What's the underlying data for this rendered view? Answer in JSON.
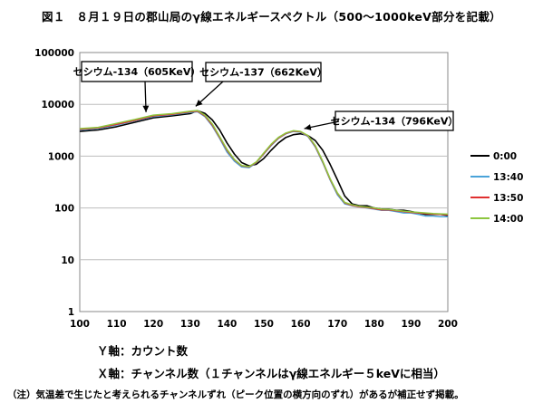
{
  "title": "図１　８月１９日の郡山局のγ線エネルギースペクトル（500～1000keV部分を記載）",
  "captions": {
    "y_axis": "Ｙ軸：カウント数",
    "x_axis": "Ｘ軸：チャンネル数（１チャンネルはγ線エネルギー５keVに相当）"
  },
  "note": "（注）気温差で生じたと考えられるチャンネルずれ（ピーク位置の横方向のずれ）があるが補正せず掲載。",
  "chart_data": {
    "type": "line",
    "title": "",
    "xlabel": "",
    "ylabel": "",
    "yscale": "log",
    "xlim": [
      100,
      200
    ],
    "ylim": [
      1,
      100000
    ],
    "x_ticks": [
      "100",
      "110",
      "120",
      "130",
      "140",
      "150",
      "160",
      "170",
      "180",
      "190",
      "200"
    ],
    "y_ticks": [
      "1",
      "10",
      "100",
      "1000",
      "10000",
      "100000"
    ],
    "grid": "horizontal",
    "legend_position": "right",
    "annotations": [
      {
        "text": "セシウム-134（605KeV）",
        "x": 118,
        "y": 6000
      },
      {
        "text": "セシウム-137（662KeV）",
        "x": 131.5,
        "y": 7800
      },
      {
        "text": "セシウム-134（796KeV）",
        "x": 161,
        "y": 2900
      }
    ],
    "series": [
      {
        "name": "0:00",
        "color": "#000000",
        "x": [
          100,
          105,
          110,
          115,
          120,
          125,
          130,
          132,
          134,
          136,
          138,
          140,
          142,
          144,
          146,
          148,
          150,
          152,
          154,
          156,
          158,
          160,
          162,
          164,
          166,
          168,
          170,
          172,
          174,
          176,
          178,
          180,
          182,
          184,
          186,
          188,
          190,
          192,
          194,
          196,
          198,
          200
        ],
        "y": [
          3000,
          3200,
          3700,
          4500,
          5500,
          6000,
          6600,
          7500,
          6700,
          5000,
          3200,
          1800,
          1100,
          750,
          650,
          700,
          900,
          1300,
          1800,
          2300,
          2600,
          2700,
          2500,
          2000,
          1300,
          700,
          350,
          170,
          120,
          110,
          110,
          100,
          95,
          95,
          90,
          90,
          85,
          80,
          75,
          75,
          75,
          72
        ]
      },
      {
        "name": "13:40",
        "color": "#4aa3d9",
        "x": [
          100,
          105,
          110,
          115,
          120,
          125,
          130,
          132,
          134,
          136,
          138,
          140,
          142,
          144,
          146,
          148,
          150,
          152,
          154,
          156,
          158,
          160,
          162,
          164,
          166,
          168,
          170,
          172,
          174,
          176,
          178,
          180,
          182,
          184,
          186,
          188,
          190,
          192,
          194,
          196,
          198,
          200
        ],
        "y": [
          3200,
          3400,
          4000,
          4800,
          5800,
          6300,
          7000,
          7200,
          5800,
          3800,
          2200,
          1200,
          800,
          620,
          600,
          750,
          1100,
          1600,
          2200,
          2700,
          3000,
          2900,
          2400,
          1500,
          750,
          350,
          180,
          120,
          110,
          105,
          100,
          95,
          90,
          90,
          85,
          80,
          80,
          75,
          70,
          70,
          68,
          68
        ]
      },
      {
        "name": "13:50",
        "color": "#e03030",
        "x": [
          100,
          105,
          110,
          115,
          120,
          125,
          130,
          132,
          134,
          136,
          138,
          140,
          142,
          144,
          146,
          148,
          150,
          152,
          154,
          156,
          158,
          160,
          162,
          164,
          166,
          168,
          170,
          172,
          174,
          176,
          178,
          180,
          182,
          184,
          186,
          188,
          190,
          192,
          194,
          196,
          198,
          200
        ],
        "y": [
          3300,
          3500,
          4100,
          4900,
          6000,
          6400,
          7200,
          7400,
          6000,
          4000,
          2300,
          1300,
          850,
          650,
          620,
          760,
          1120,
          1650,
          2250,
          2750,
          3050,
          2950,
          2450,
          1550,
          780,
          360,
          190,
          125,
          112,
          106,
          102,
          97,
          92,
          92,
          88,
          85,
          82,
          80,
          78,
          76,
          75,
          74
        ]
      },
      {
        "name": "14:00",
        "color": "#8dc63f",
        "x": [
          100,
          105,
          110,
          115,
          120,
          125,
          130,
          132,
          134,
          136,
          138,
          140,
          142,
          144,
          146,
          148,
          150,
          152,
          154,
          156,
          158,
          160,
          162,
          164,
          166,
          168,
          170,
          172,
          174,
          176,
          178,
          180,
          182,
          184,
          186,
          188,
          190,
          192,
          194,
          196,
          198,
          200
        ],
        "y": [
          3400,
          3600,
          4300,
          5100,
          6200,
          6600,
          7400,
          7600,
          6200,
          4200,
          2400,
          1350,
          870,
          660,
          630,
          780,
          1150,
          1700,
          2300,
          2800,
          3100,
          3000,
          2500,
          1600,
          800,
          370,
          195,
          128,
          115,
          108,
          104,
          100,
          95,
          94,
          90,
          87,
          84,
          82,
          80,
          78,
          77,
          76
        ]
      }
    ]
  }
}
